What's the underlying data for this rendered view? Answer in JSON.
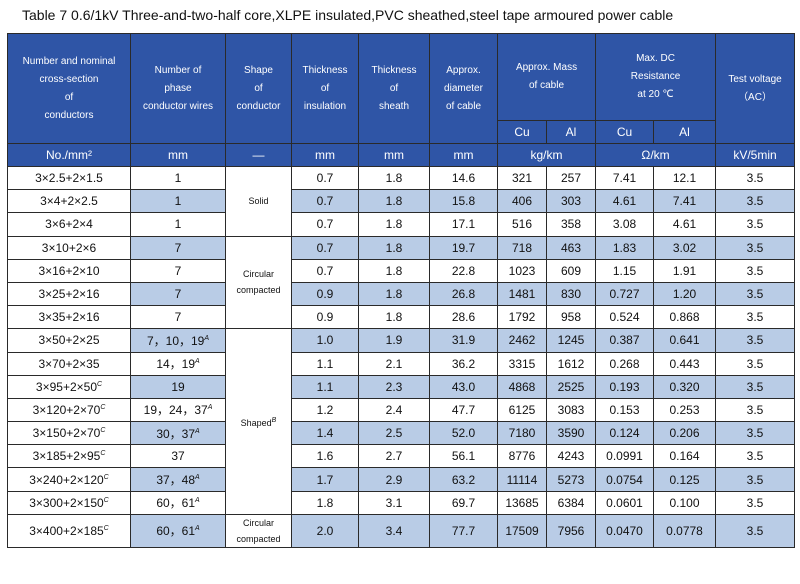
{
  "title": "Table 7    0.6/1kV Three-and-two-half core,XLPE insulated,PVC sheathed,steel tape armoured power cable",
  "headers": {
    "col1": [
      "Number and nominal",
      "cross-section",
      "of",
      "conductors"
    ],
    "col2": [
      "Number of",
      "phase",
      "conductor wires"
    ],
    "col3": [
      "Shape",
      "of",
      "conductor"
    ],
    "col4": [
      "Thickness",
      "of",
      "insulation"
    ],
    "col5": [
      "Thickness",
      "of",
      "sheath"
    ],
    "col6": [
      "Approx.",
      "diameter",
      "of cable"
    ],
    "mass": [
      "Approx. Mass",
      "of cable"
    ],
    "resistance": [
      "Max. DC",
      "Resistance",
      "at 20 ℃"
    ],
    "voltage": [
      "Test voltage",
      "（AC）"
    ],
    "cu": "Cu",
    "al": "Al"
  },
  "units": [
    "No./mm²",
    "mm",
    "—",
    "mm",
    "mm",
    "mm",
    "kg/km",
    "Ω/km",
    "kV/5min"
  ],
  "shapes": {
    "solid": "Solid",
    "circular": [
      "Circular",
      "compacted"
    ],
    "shaped": "Shaped",
    "shaped_sup": "B",
    "circular_last": [
      "Circular",
      "compacted"
    ]
  },
  "rows": [
    {
      "cs": "3×2.5+2×1.5",
      "cs_sup": "",
      "wires": "1",
      "wires_sup": "",
      "ins": "0.7",
      "sheath": "1.8",
      "dia": "14.6",
      "cu": "321",
      "al": "257",
      "rcu": "7.41",
      "ral": "12.1",
      "tv": "3.5"
    },
    {
      "cs": "3×4+2×2.5",
      "cs_sup": "",
      "wires": "1",
      "wires_sup": "",
      "ins": "0.7",
      "sheath": "1.8",
      "dia": "15.8",
      "cu": "406",
      "al": "303",
      "rcu": "4.61",
      "ral": "7.41",
      "tv": "3.5"
    },
    {
      "cs": "3×6+2×4",
      "cs_sup": "",
      "wires": "1",
      "wires_sup": "",
      "ins": "0.7",
      "sheath": "1.8",
      "dia": "17.1",
      "cu": "516",
      "al": "358",
      "rcu": "3.08",
      "ral": "4.61",
      "tv": "3.5"
    },
    {
      "cs": "3×10+2×6",
      "cs_sup": "",
      "wires": "7",
      "wires_sup": "",
      "ins": "0.7",
      "sheath": "1.8",
      "dia": "19.7",
      "cu": "718",
      "al": "463",
      "rcu": "1.83",
      "ral": "3.02",
      "tv": "3.5"
    },
    {
      "cs": "3×16+2×10",
      "cs_sup": "",
      "wires": "7",
      "wires_sup": "",
      "ins": "0.7",
      "sheath": "1.8",
      "dia": "22.8",
      "cu": "1023",
      "al": "609",
      "rcu": "1.15",
      "ral": "1.91",
      "tv": "3.5"
    },
    {
      "cs": "3×25+2×16",
      "cs_sup": "",
      "wires": "7",
      "wires_sup": "",
      "ins": "0.9",
      "sheath": "1.8",
      "dia": "26.8",
      "cu": "1481",
      "al": "830",
      "rcu": "0.727",
      "ral": "1.20",
      "tv": "3.5"
    },
    {
      "cs": "3×35+2×16",
      "cs_sup": "",
      "wires": "7",
      "wires_sup": "",
      "ins": "0.9",
      "sheath": "1.8",
      "dia": "28.6",
      "cu": "1792",
      "al": "958",
      "rcu": "0.524",
      "ral": "0.868",
      "tv": "3.5"
    },
    {
      "cs": "3×50+2×25",
      "cs_sup": "",
      "wires": "7，10，19",
      "wires_sup": "A",
      "ins": "1.0",
      "sheath": "1.9",
      "dia": "31.9",
      "cu": "2462",
      "al": "1245",
      "rcu": "0.387",
      "ral": "0.641",
      "tv": "3.5"
    },
    {
      "cs": "3×70+2×35",
      "cs_sup": "",
      "wires": "14，19",
      "wires_sup": "A",
      "ins": "1.1",
      "sheath": "2.1",
      "dia": "36.2",
      "cu": "3315",
      "al": "1612",
      "rcu": "0.268",
      "ral": "0.443",
      "tv": "3.5"
    },
    {
      "cs": "3×95+2×50",
      "cs_sup": "C",
      "wires": "19",
      "wires_sup": "",
      "ins": "1.1",
      "sheath": "2.3",
      "dia": "43.0",
      "cu": "4868",
      "al": "2525",
      "rcu": "0.193",
      "ral": "0.320",
      "tv": "3.5"
    },
    {
      "cs": "3×120+2×70",
      "cs_sup": "C",
      "wires": "19，24，37",
      "wires_sup": "A",
      "ins": "1.2",
      "sheath": "2.4",
      "dia": "47.7",
      "cu": "6125",
      "al": "3083",
      "rcu": "0.153",
      "ral": "0.253",
      "tv": "3.5"
    },
    {
      "cs": "3×150+2×70",
      "cs_sup": "C",
      "wires": "30，37",
      "wires_sup": "A",
      "ins": "1.4",
      "sheath": "2.5",
      "dia": "52.0",
      "cu": "7180",
      "al": "3590",
      "rcu": "0.124",
      "ral": "0.206",
      "tv": "3.5"
    },
    {
      "cs": "3×185+2×95",
      "cs_sup": "C",
      "wires": "37",
      "wires_sup": "",
      "ins": "1.6",
      "sheath": "2.7",
      "dia": "56.1",
      "cu": "8776",
      "al": "4243",
      "rcu": "0.0991",
      "ral": "0.164",
      "tv": "3.5"
    },
    {
      "cs": "3×240+2×120",
      "cs_sup": "C",
      "wires": "37，48",
      "wires_sup": "A",
      "ins": "1.7",
      "sheath": "2.9",
      "dia": "63.2",
      "cu": "11114",
      "al": "5273",
      "rcu": "0.0754",
      "ral": "0.125",
      "tv": "3.5"
    },
    {
      "cs": "3×300+2×150",
      "cs_sup": "C",
      "wires": "60，61",
      "wires_sup": "A",
      "ins": "1.8",
      "sheath": "3.1",
      "dia": "69.7",
      "cu": "13685",
      "al": "6384",
      "rcu": "0.0601",
      "ral": "0.100",
      "tv": "3.5"
    },
    {
      "cs": "3×400+2×185",
      "cs_sup": "C",
      "wires": "60，61",
      "wires_sup": "A",
      "ins": "2.0",
      "sheath": "3.4",
      "dia": "77.7",
      "cu": "17509",
      "al": "7956",
      "rcu": "0.0470",
      "ral": "0.0778",
      "tv": "3.5"
    }
  ]
}
